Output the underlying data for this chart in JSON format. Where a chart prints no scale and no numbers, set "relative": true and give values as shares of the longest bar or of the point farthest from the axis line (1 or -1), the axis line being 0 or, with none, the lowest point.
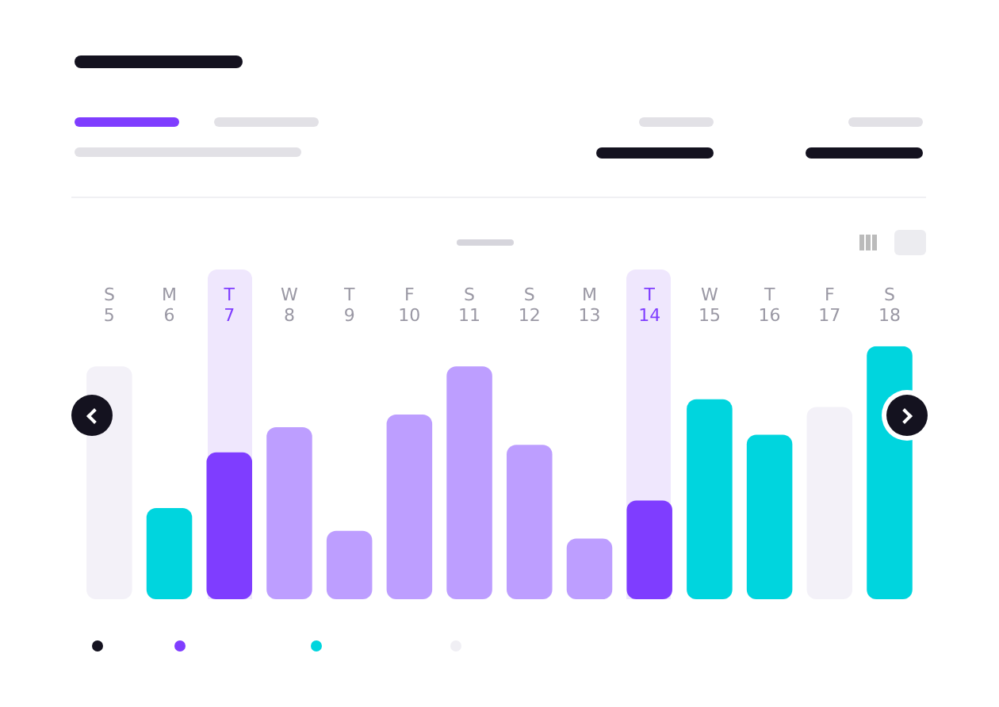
{
  "chart_data": {
    "type": "bar",
    "relative": true,
    "grid": false,
    "legend": false,
    "categories": [
      "S 5",
      "M 6",
      "T 7",
      "W 8",
      "T 9",
      "F 10",
      "S 11",
      "S 12",
      "M 13",
      "T 14",
      "W 15",
      "T 16",
      "F 17",
      "S 18"
    ],
    "values": [
      0.92,
      0.36,
      0.58,
      0.68,
      0.27,
      0.73,
      0.92,
      0.61,
      0.24,
      0.39,
      0.79,
      0.65,
      0.76,
      1
    ],
    "colors": [
      "#f3f1f8",
      "#00d5de",
      "#7f3dff",
      "#bd9eff",
      "#bd9eff",
      "#bd9eff",
      "#bd9eff",
      "#bd9eff",
      "#bd9eff",
      "#7f3dff",
      "#00d5de",
      "#00d5de",
      "#f3f1f8",
      "#00d5de"
    ]
  }
}
